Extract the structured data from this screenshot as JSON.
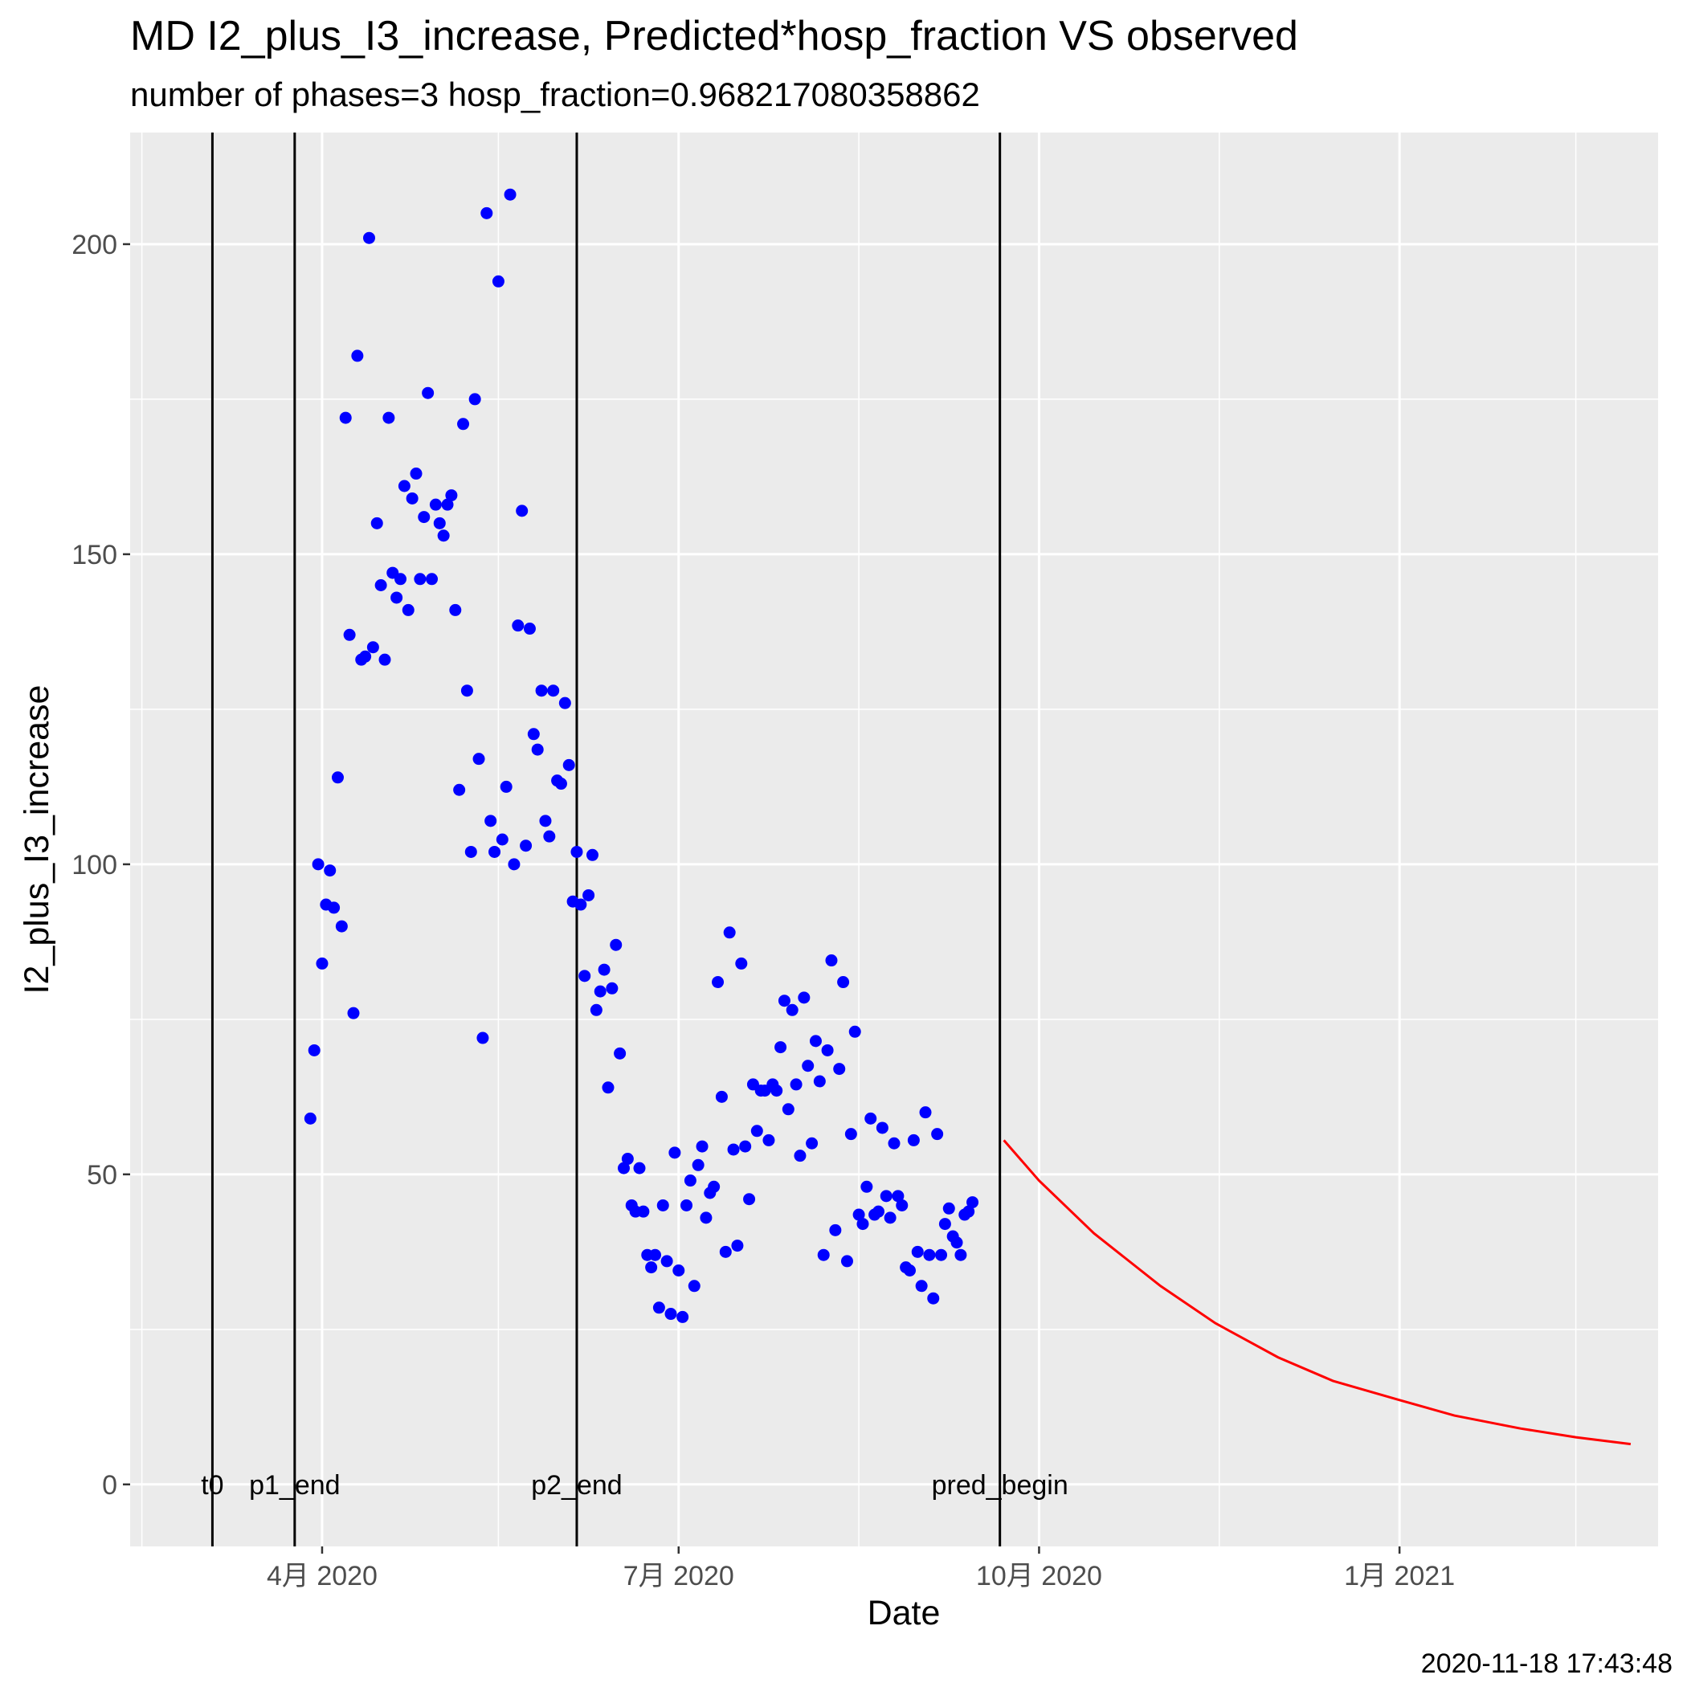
{
  "chart_data": {
    "type": "scatter",
    "title": "MD I2_plus_I3_increase, Predicted*hosp_fraction VS observed",
    "subtitle": "number of phases=3   hosp_fraction=0.968217080358862",
    "xlabel": "Date",
    "ylabel": "I2_plus_I3_increase",
    "caption": "2020-11-18 17:43:48",
    "grid": true,
    "x_scale": "date",
    "xlim": [
      "2020-02-12",
      "2021-03-08"
    ],
    "ylim": [
      -10,
      218
    ],
    "x_ticks": [
      {
        "date": "2020-04-01",
        "label": "4月 2020"
      },
      {
        "date": "2020-07-01",
        "label": "7月 2020"
      },
      {
        "date": "2020-10-01",
        "label": "10月 2020"
      },
      {
        "date": "2021-01-01",
        "label": "1月 2021"
      }
    ],
    "y_ticks": [
      0,
      50,
      100,
      150,
      200
    ],
    "vlines": [
      {
        "date": "2020-03-04",
        "label": "t0"
      },
      {
        "date": "2020-03-25",
        "label": "p1_end"
      },
      {
        "date": "2020-06-05",
        "label": "p2_end"
      },
      {
        "date": "2020-09-21",
        "label": "pred_begin"
      }
    ],
    "series": [
      {
        "kind": "points",
        "color": "#0000FF",
        "points": [
          [
            "2020-03-29",
            59
          ],
          [
            "2020-03-30",
            70
          ],
          [
            "2020-03-31",
            100
          ],
          [
            "2020-04-01",
            84
          ],
          [
            "2020-04-02",
            93.5
          ],
          [
            "2020-04-03",
            99
          ],
          [
            "2020-04-04",
            93
          ],
          [
            "2020-04-05",
            114
          ],
          [
            "2020-04-06",
            90
          ],
          [
            "2020-04-07",
            172
          ],
          [
            "2020-04-08",
            137
          ],
          [
            "2020-04-09",
            76
          ],
          [
            "2020-04-10",
            182
          ],
          [
            "2020-04-11",
            133
          ],
          [
            "2020-04-12",
            133.5
          ],
          [
            "2020-04-13",
            201
          ],
          [
            "2020-04-14",
            135
          ],
          [
            "2020-04-15",
            155
          ],
          [
            "2020-04-16",
            145
          ],
          [
            "2020-04-17",
            133
          ],
          [
            "2020-04-18",
            172
          ],
          [
            "2020-04-19",
            147
          ],
          [
            "2020-04-20",
            143
          ],
          [
            "2020-04-21",
            146
          ],
          [
            "2020-04-22",
            161
          ],
          [
            "2020-04-23",
            141
          ],
          [
            "2020-04-24",
            159
          ],
          [
            "2020-04-25",
            163
          ],
          [
            "2020-04-26",
            146
          ],
          [
            "2020-04-27",
            156
          ],
          [
            "2020-04-28",
            176
          ],
          [
            "2020-04-29",
            146
          ],
          [
            "2020-04-30",
            158
          ],
          [
            "2020-05-01",
            155
          ],
          [
            "2020-05-02",
            153
          ],
          [
            "2020-05-03",
            158
          ],
          [
            "2020-05-04",
            159.5
          ],
          [
            "2020-05-05",
            141
          ],
          [
            "2020-05-06",
            112
          ],
          [
            "2020-05-07",
            171
          ],
          [
            "2020-05-08",
            128
          ],
          [
            "2020-05-09",
            102
          ],
          [
            "2020-05-10",
            175
          ],
          [
            "2020-05-11",
            117
          ],
          [
            "2020-05-12",
            72
          ],
          [
            "2020-05-13",
            205
          ],
          [
            "2020-05-14",
            107
          ],
          [
            "2020-05-15",
            102
          ],
          [
            "2020-05-16",
            194
          ],
          [
            "2020-05-17",
            104
          ],
          [
            "2020-05-18",
            112.5
          ],
          [
            "2020-05-19",
            208
          ],
          [
            "2020-05-20",
            100
          ],
          [
            "2020-05-21",
            138.5
          ],
          [
            "2020-05-22",
            157
          ],
          [
            "2020-05-23",
            103
          ],
          [
            "2020-05-24",
            138
          ],
          [
            "2020-05-25",
            121
          ],
          [
            "2020-05-26",
            118.5
          ],
          [
            "2020-05-27",
            128
          ],
          [
            "2020-05-28",
            107
          ],
          [
            "2020-05-29",
            104.5
          ],
          [
            "2020-05-30",
            128
          ],
          [
            "2020-05-31",
            113.5
          ],
          [
            "2020-06-01",
            113
          ],
          [
            "2020-06-02",
            126
          ],
          [
            "2020-06-03",
            116
          ],
          [
            "2020-06-04",
            94
          ],
          [
            "2020-06-05",
            102
          ],
          [
            "2020-06-06",
            93.5
          ],
          [
            "2020-06-07",
            82
          ],
          [
            "2020-06-08",
            95
          ],
          [
            "2020-06-09",
            101.5
          ],
          [
            "2020-06-10",
            76.5
          ],
          [
            "2020-06-11",
            79.5
          ],
          [
            "2020-06-12",
            83
          ],
          [
            "2020-06-13",
            64
          ],
          [
            "2020-06-14",
            80
          ],
          [
            "2020-06-15",
            87
          ],
          [
            "2020-06-16",
            69.5
          ],
          [
            "2020-06-17",
            51
          ],
          [
            "2020-06-18",
            52.5
          ],
          [
            "2020-06-19",
            45
          ],
          [
            "2020-06-20",
            44
          ],
          [
            "2020-06-21",
            51
          ],
          [
            "2020-06-22",
            44
          ],
          [
            "2020-06-23",
            37
          ],
          [
            "2020-06-24",
            35
          ],
          [
            "2020-06-25",
            37
          ],
          [
            "2020-06-26",
            28.5
          ],
          [
            "2020-06-27",
            45
          ],
          [
            "2020-06-28",
            36
          ],
          [
            "2020-06-29",
            27.5
          ],
          [
            "2020-06-30",
            53.5
          ],
          [
            "2020-07-01",
            34.5
          ],
          [
            "2020-07-02",
            27
          ],
          [
            "2020-07-03",
            45
          ],
          [
            "2020-07-04",
            49
          ],
          [
            "2020-07-05",
            32
          ],
          [
            "2020-07-06",
            51.5
          ],
          [
            "2020-07-07",
            54.5
          ],
          [
            "2020-07-08",
            43
          ],
          [
            "2020-07-09",
            47
          ],
          [
            "2020-07-10",
            48
          ],
          [
            "2020-07-11",
            81
          ],
          [
            "2020-07-12",
            62.5
          ],
          [
            "2020-07-13",
            37.5
          ],
          [
            "2020-07-14",
            89
          ],
          [
            "2020-07-15",
            54
          ],
          [
            "2020-07-16",
            38.5
          ],
          [
            "2020-07-17",
            84
          ],
          [
            "2020-07-18",
            54.5
          ],
          [
            "2020-07-19",
            46
          ],
          [
            "2020-07-20",
            64.5
          ],
          [
            "2020-07-21",
            57
          ],
          [
            "2020-07-22",
            63.5
          ],
          [
            "2020-07-23",
            63.5
          ],
          [
            "2020-07-24",
            55.5
          ],
          [
            "2020-07-25",
            64.5
          ],
          [
            "2020-07-26",
            63.5
          ],
          [
            "2020-07-27",
            70.5
          ],
          [
            "2020-07-28",
            78
          ],
          [
            "2020-07-29",
            60.5
          ],
          [
            "2020-07-30",
            76.5
          ],
          [
            "2020-07-31",
            64.5
          ],
          [
            "2020-08-01",
            53
          ],
          [
            "2020-08-02",
            78.5
          ],
          [
            "2020-08-03",
            67.5
          ],
          [
            "2020-08-04",
            55
          ],
          [
            "2020-08-05",
            71.5
          ],
          [
            "2020-08-06",
            65
          ],
          [
            "2020-08-07",
            37
          ],
          [
            "2020-08-08",
            70
          ],
          [
            "2020-08-09",
            84.5
          ],
          [
            "2020-08-10",
            41
          ],
          [
            "2020-08-11",
            67
          ],
          [
            "2020-08-12",
            81
          ],
          [
            "2020-08-13",
            36
          ],
          [
            "2020-08-14",
            56.5
          ],
          [
            "2020-08-15",
            73
          ],
          [
            "2020-08-16",
            43.5
          ],
          [
            "2020-08-17",
            42
          ],
          [
            "2020-08-18",
            48
          ],
          [
            "2020-08-19",
            59
          ],
          [
            "2020-08-20",
            43.5
          ],
          [
            "2020-08-21",
            44
          ],
          [
            "2020-08-22",
            57.5
          ],
          [
            "2020-08-23",
            46.5
          ],
          [
            "2020-08-24",
            43
          ],
          [
            "2020-08-25",
            55
          ],
          [
            "2020-08-26",
            46.5
          ],
          [
            "2020-08-27",
            45
          ],
          [
            "2020-08-28",
            35
          ],
          [
            "2020-08-29",
            34.5
          ],
          [
            "2020-08-30",
            55.5
          ],
          [
            "2020-08-31",
            37.5
          ],
          [
            "2020-09-01",
            32
          ],
          [
            "2020-09-02",
            60
          ],
          [
            "2020-09-03",
            37
          ],
          [
            "2020-09-04",
            30
          ],
          [
            "2020-09-05",
            56.5
          ],
          [
            "2020-09-06",
            37
          ],
          [
            "2020-09-07",
            42
          ],
          [
            "2020-09-08",
            44.5
          ],
          [
            "2020-09-09",
            40
          ],
          [
            "2020-09-10",
            39
          ],
          [
            "2020-09-11",
            37
          ],
          [
            "2020-09-12",
            43.5
          ],
          [
            "2020-09-13",
            44
          ],
          [
            "2020-09-14",
            45.5
          ]
        ]
      },
      {
        "kind": "line",
        "color": "#FF0000",
        "points": [
          [
            "2020-09-22",
            55.5
          ],
          [
            "2020-10-01",
            49
          ],
          [
            "2020-10-15",
            40.5
          ],
          [
            "2020-11-01",
            32
          ],
          [
            "2020-11-15",
            26
          ],
          [
            "2020-12-01",
            20.5
          ],
          [
            "2020-12-15",
            16.7
          ],
          [
            "2021-01-01",
            13.6
          ],
          [
            "2021-01-15",
            11.1
          ],
          [
            "2021-02-01",
            9
          ],
          [
            "2021-02-15",
            7.6
          ],
          [
            "2021-03-01",
            6.5
          ]
        ]
      }
    ]
  }
}
